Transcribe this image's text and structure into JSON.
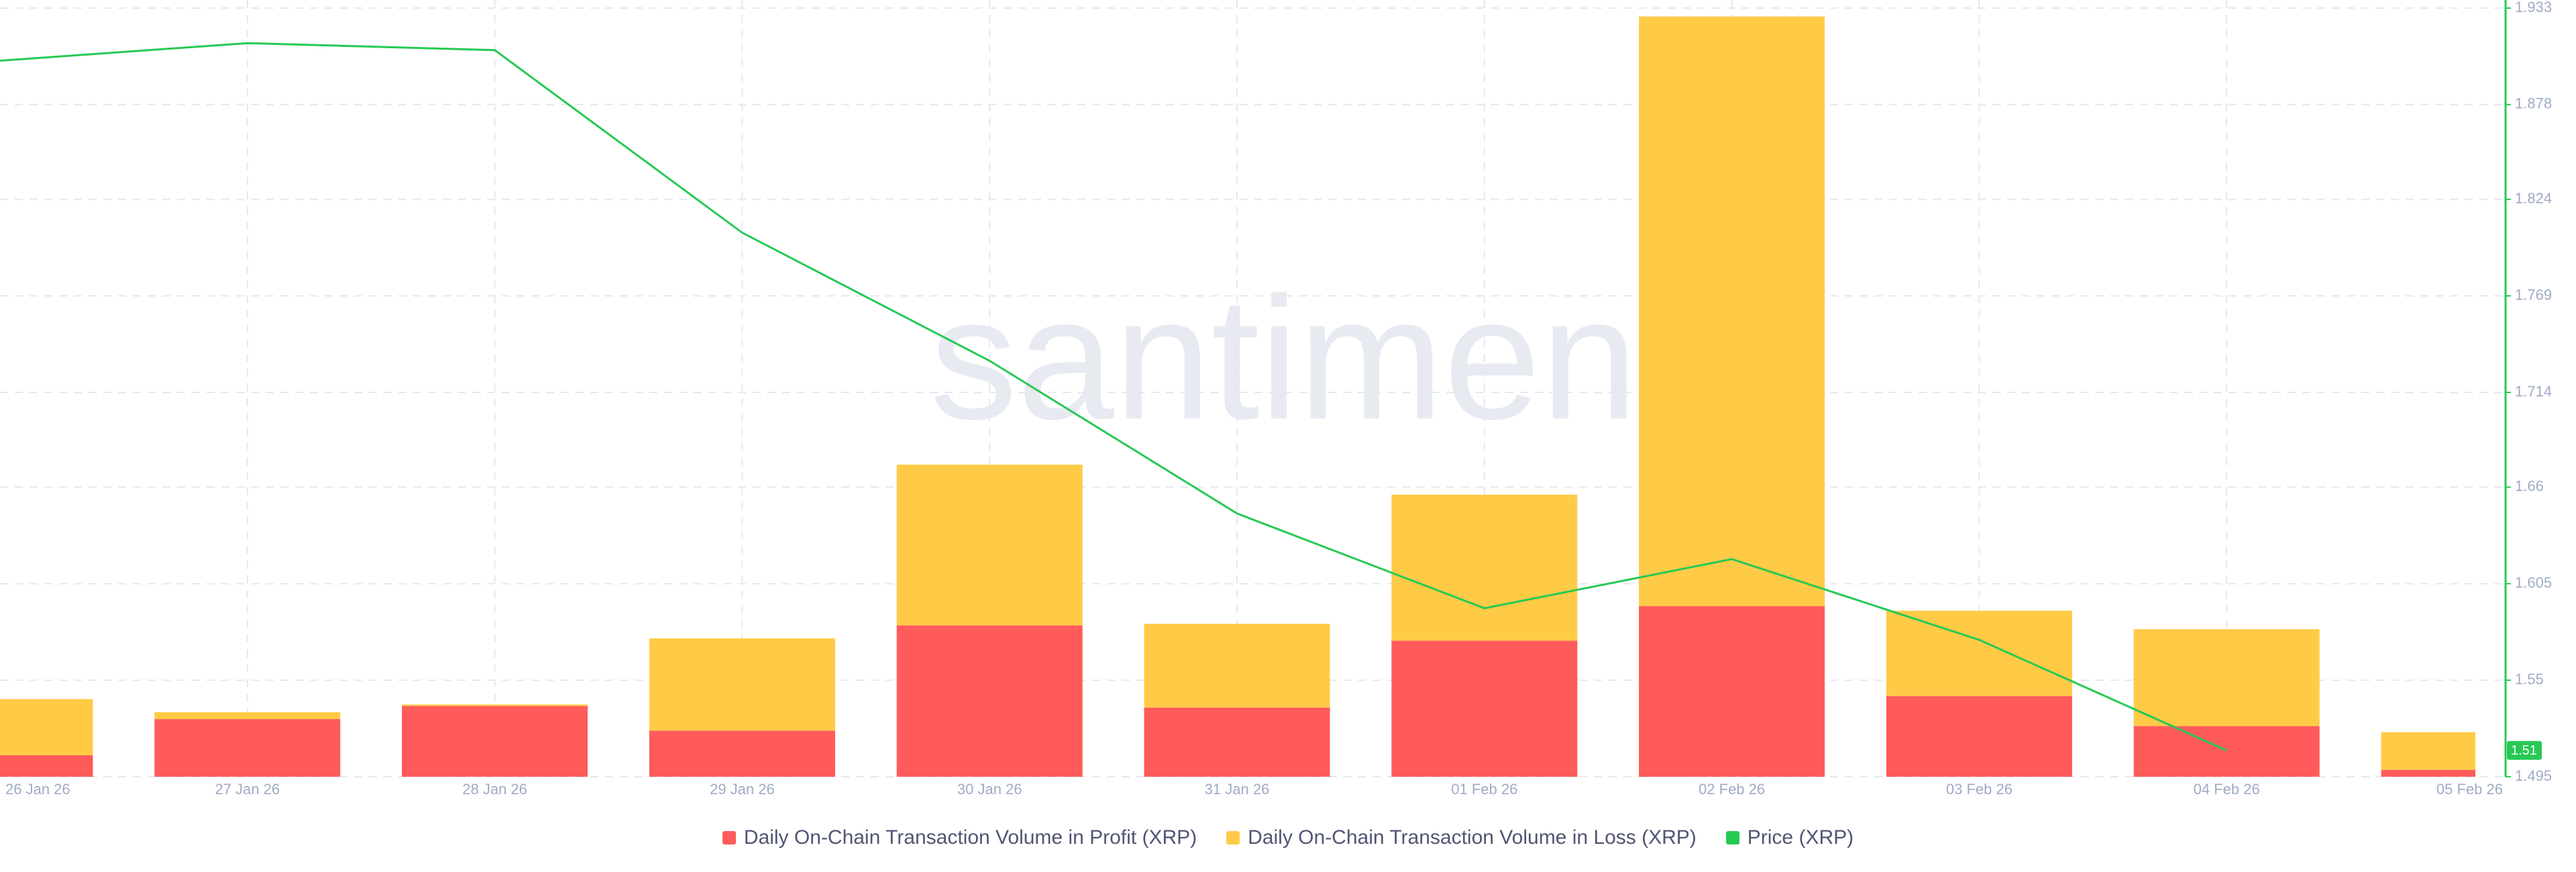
{
  "chart_data": {
    "type": "bar-line",
    "watermark": "santiment",
    "categories": [
      "26 Jan 26",
      "27 Jan 26",
      "28 Jan 26",
      "29 Jan 26",
      "30 Jan 26",
      "31 Jan 26",
      "01 Feb 26",
      "02 Feb 26",
      "03 Feb 26",
      "04 Feb 26",
      "05 Feb 26"
    ],
    "ylim": [
      0,
      100
    ],
    "y2lim": [
      1.495,
      1.933
    ],
    "y2ticks": [
      1.495,
      1.55,
      1.605,
      1.66,
      1.714,
      1.769,
      1.824,
      1.878,
      1.933
    ],
    "grid": true,
    "series": [
      {
        "name": "Daily On-Chain Transaction Volume in Profit (XRP)",
        "color": "#ff5b5b",
        "type": "bar",
        "values": [
          2.8,
          7.5,
          9.2,
          6.0,
          19.7,
          9.0,
          17.7,
          22.2,
          10.5,
          6.6,
          0.9
        ]
      },
      {
        "name": "Daily On-Chain Transaction Volume in Loss (XRP)",
        "color": "#ffcb47",
        "type": "bar",
        "values": [
          7.3,
          0.9,
          0.2,
          12.0,
          20.9,
          10.9,
          19.0,
          76.7,
          11.1,
          12.6,
          4.9
        ]
      },
      {
        "name": "Price (XRP)",
        "color": "#26c953",
        "type": "line",
        "axis": "y2",
        "values": [
          1.903,
          1.913,
          1.909,
          1.805,
          1.732,
          1.645,
          1.591,
          1.619,
          1.573,
          1.51,
          null
        ],
        "value_labels": [
          null,
          null,
          null,
          null,
          null,
          null,
          null,
          null,
          null,
          "1.51",
          null
        ]
      }
    ]
  }
}
